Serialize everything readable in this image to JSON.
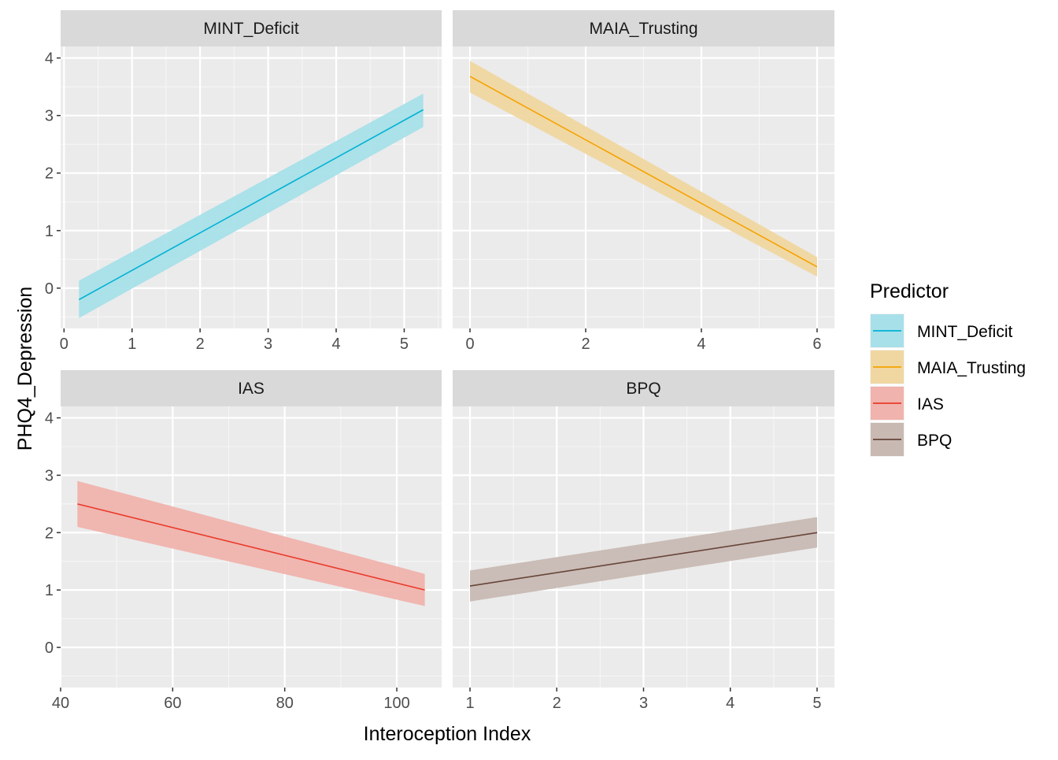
{
  "chart_data": {
    "type": "line",
    "xlabel": "Interoception Index",
    "ylabel": "PHQ4_Depression",
    "legend": {
      "title": "Predictor",
      "placement": "right",
      "entries": [
        {
          "label": "MINT_Deficit",
          "line": "#00b2d4",
          "fill": "#a8e0e9"
        },
        {
          "label": "MAIA_Trusting",
          "line": "#f5a300",
          "fill": "#f0d7a1"
        },
        {
          "label": "IAS",
          "line": "#ea3a2a",
          "fill": "#f0b3ad"
        },
        {
          "label": "BPQ",
          "line": "#66453a",
          "fill": "#c8b9b3"
        }
      ]
    },
    "grid": true,
    "facets": [
      {
        "title": "MINT_Deficit",
        "xlim": [
          -0.05,
          5.55
        ],
        "ylim": [
          -0.7,
          4.2
        ],
        "xticks": [
          0,
          1,
          2,
          3,
          4,
          5
        ],
        "yticks": [
          0,
          1,
          2,
          3,
          4
        ],
        "series": [
          {
            "name": "MINT_Deficit",
            "x": [
              0.22,
              5.28
            ],
            "y": [
              -0.2,
              3.1
            ],
            "lower": [
              -0.52,
              2.8
            ],
            "upper": [
              0.13,
              3.38
            ]
          }
        ]
      },
      {
        "title": "MAIA_Trusting",
        "xlim": [
          -0.3,
          6.3
        ],
        "ylim": [
          -0.7,
          4.2
        ],
        "xticks": [
          0,
          2,
          4,
          6
        ],
        "yticks": [
          0,
          1,
          2,
          3,
          4
        ],
        "series": [
          {
            "name": "MAIA_Trusting",
            "x": [
              0,
              6
            ],
            "y": [
              3.68,
              0.37
            ],
            "lower": [
              3.4,
              0.2
            ],
            "upper": [
              3.95,
              0.54
            ]
          }
        ]
      },
      {
        "title": "IAS",
        "xlim": [
          40,
          108
        ],
        "ylim": [
          -0.7,
          4.2
        ],
        "xticks": [
          40,
          60,
          80,
          100
        ],
        "yticks": [
          0,
          1,
          2,
          3,
          4
        ],
        "series": [
          {
            "name": "IAS",
            "x": [
              43,
              105
            ],
            "y": [
              2.5,
              1.0
            ],
            "lower": [
              2.1,
              0.72
            ],
            "upper": [
              2.9,
              1.28
            ]
          }
        ]
      },
      {
        "title": "BPQ",
        "xlim": [
          0.8,
          5.2
        ],
        "ylim": [
          -0.7,
          4.2
        ],
        "xticks": [
          1,
          2,
          3,
          4,
          5
        ],
        "yticks": [
          0,
          1,
          2,
          3,
          4
        ],
        "series": [
          {
            "name": "BPQ",
            "x": [
              1,
              5
            ],
            "y": [
              1.07,
              2.0
            ],
            "lower": [
              0.8,
              1.74
            ],
            "upper": [
              1.34,
              2.27
            ]
          }
        ]
      }
    ]
  }
}
